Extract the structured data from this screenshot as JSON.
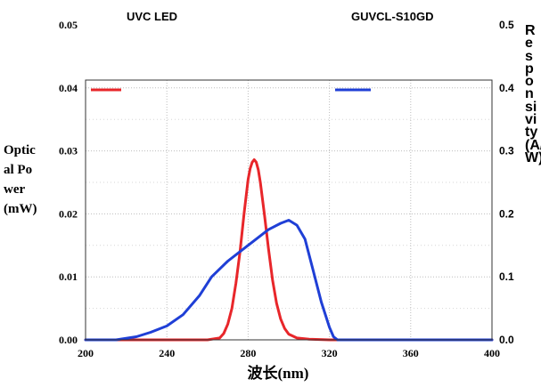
{
  "chart_data": {
    "type": "line",
    "title_left": "UVC LED",
    "title_right": "GUVCL-S10GD",
    "xlabel": "波长(nm)",
    "ylabel_left": "Optical Power(mW)",
    "ylabel_right": "Responsivity(A/W)",
    "xlim": [
      200,
      400
    ],
    "ylim_left": [
      0,
      0.05
    ],
    "ylim_right": [
      0,
      0.5
    ],
    "x_ticks": [
      "200",
      "240",
      "280",
      "320",
      "360",
      "400"
    ],
    "y_left_ticks": [
      "0.00",
      "0.01",
      "0.02",
      "0.03",
      "0.04",
      "0.05"
    ],
    "y_right_ticks": [
      "0.0",
      "0.1",
      "0.2",
      "0.3",
      "0.4",
      "0.5"
    ],
    "grid": true,
    "legend": "top",
    "colors": {
      "led": "#e8262a",
      "sensor": "#1f3fd6"
    },
    "series": [
      {
        "axis": "left",
        "x": [
          200,
          260,
          266,
          268,
          270,
          272,
          274,
          276,
          278,
          280,
          281,
          282,
          283,
          284,
          285,
          286,
          288,
          290,
          292,
          294,
          296,
          298,
          300,
          304,
          310,
          320,
          340,
          360,
          380,
          400
        ],
        "y": [
          0,
          0,
          0.0003,
          0.001,
          0.0025,
          0.005,
          0.009,
          0.014,
          0.02,
          0.0255,
          0.0272,
          0.0282,
          0.0286,
          0.0282,
          0.027,
          0.025,
          0.02,
          0.0145,
          0.0095,
          0.0058,
          0.0033,
          0.0018,
          0.0009,
          0.0003,
          0.0001,
          0,
          0,
          0,
          0,
          0
        ]
      },
      {
        "axis": "right",
        "x": [
          200,
          215,
          225,
          232,
          240,
          248,
          256,
          262,
          270,
          278,
          284,
          290,
          296,
          300,
          304,
          308,
          312,
          316,
          320,
          322,
          324,
          330,
          360,
          400
        ],
        "y": [
          0,
          0,
          0.005,
          0.012,
          0.022,
          0.04,
          0.07,
          0.1,
          0.125,
          0.145,
          0.16,
          0.175,
          0.185,
          0.19,
          0.182,
          0.16,
          0.11,
          0.06,
          0.02,
          0.005,
          0,
          0,
          0,
          0
        ]
      }
    ]
  }
}
